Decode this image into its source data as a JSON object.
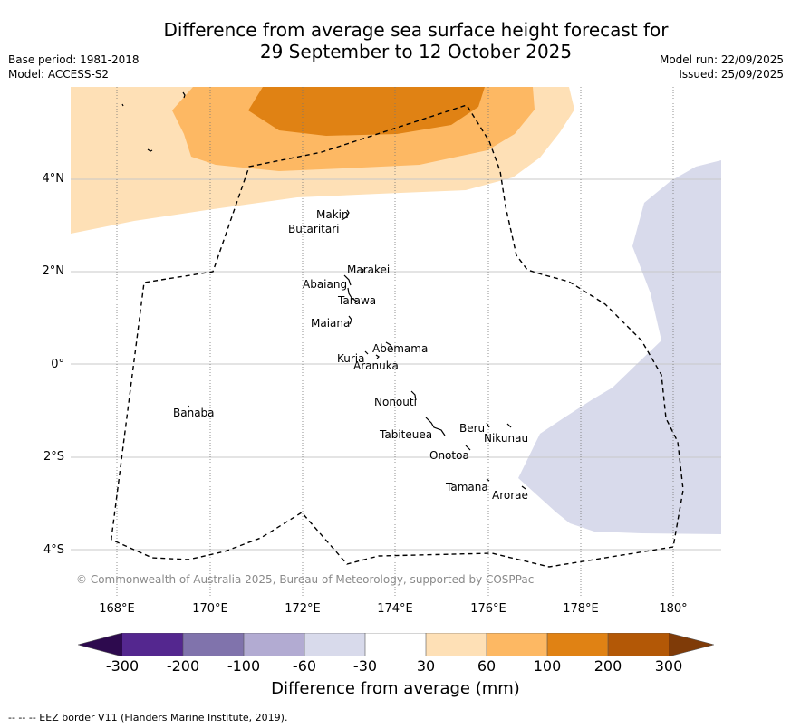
{
  "title": {
    "line1": "Difference from average sea surface height forecast for",
    "line2": "29 September to 12 October 2025"
  },
  "meta": {
    "base_period": "Base period: 1981-2018",
    "model": "Model: ACCESS-S2",
    "model_run": "Model run: 22/09/2025",
    "issued": "Issued: 25/09/2025"
  },
  "axes": {
    "lat_labels": [
      "4°N",
      "2°N",
      "0°",
      "2°S",
      "4°S"
    ],
    "lon_labels": [
      "168°E",
      "170°E",
      "172°E",
      "174°E",
      "176°E",
      "178°E",
      "180°"
    ]
  },
  "places": [
    "Makin",
    "Butaritari",
    "Marakei",
    "Abaiang",
    "Tarawa",
    "Maiana",
    "Abemama",
    "Kuria",
    "Aranuka",
    "Banaba",
    "Nonouti",
    "Beru",
    "Nikunau",
    "Tabiteuea",
    "Onotoa",
    "Tamana",
    "Arorae"
  ],
  "copyright": "© Commonwealth of Australia 2025, Bureau of Meteorology, supported by COSPPac",
  "colorbar": {
    "ticks": [
      "-300",
      "-200",
      "-100",
      "-60",
      "-30",
      "30",
      "60",
      "100",
      "200",
      "300"
    ],
    "title": "Difference from average (mm)",
    "colors": {
      "lt_neg300": "#2d0a4e",
      "neg300_neg200": "#54278f",
      "neg200_neg100": "#8073ac",
      "neg100_neg60": "#b2abd2",
      "neg60_neg30": "#d8daeb",
      "neg30_30": "#ffffff",
      "pos30_60": "#fee0b6",
      "pos60_100": "#fdb863",
      "pos100_200": "#e08214",
      "pos200_300": "#b35806",
      "gt_300": "#7f3b08"
    }
  },
  "footer": "--  --  -- EEZ border V11 (Flanders Marine Institute, 2019)."
}
